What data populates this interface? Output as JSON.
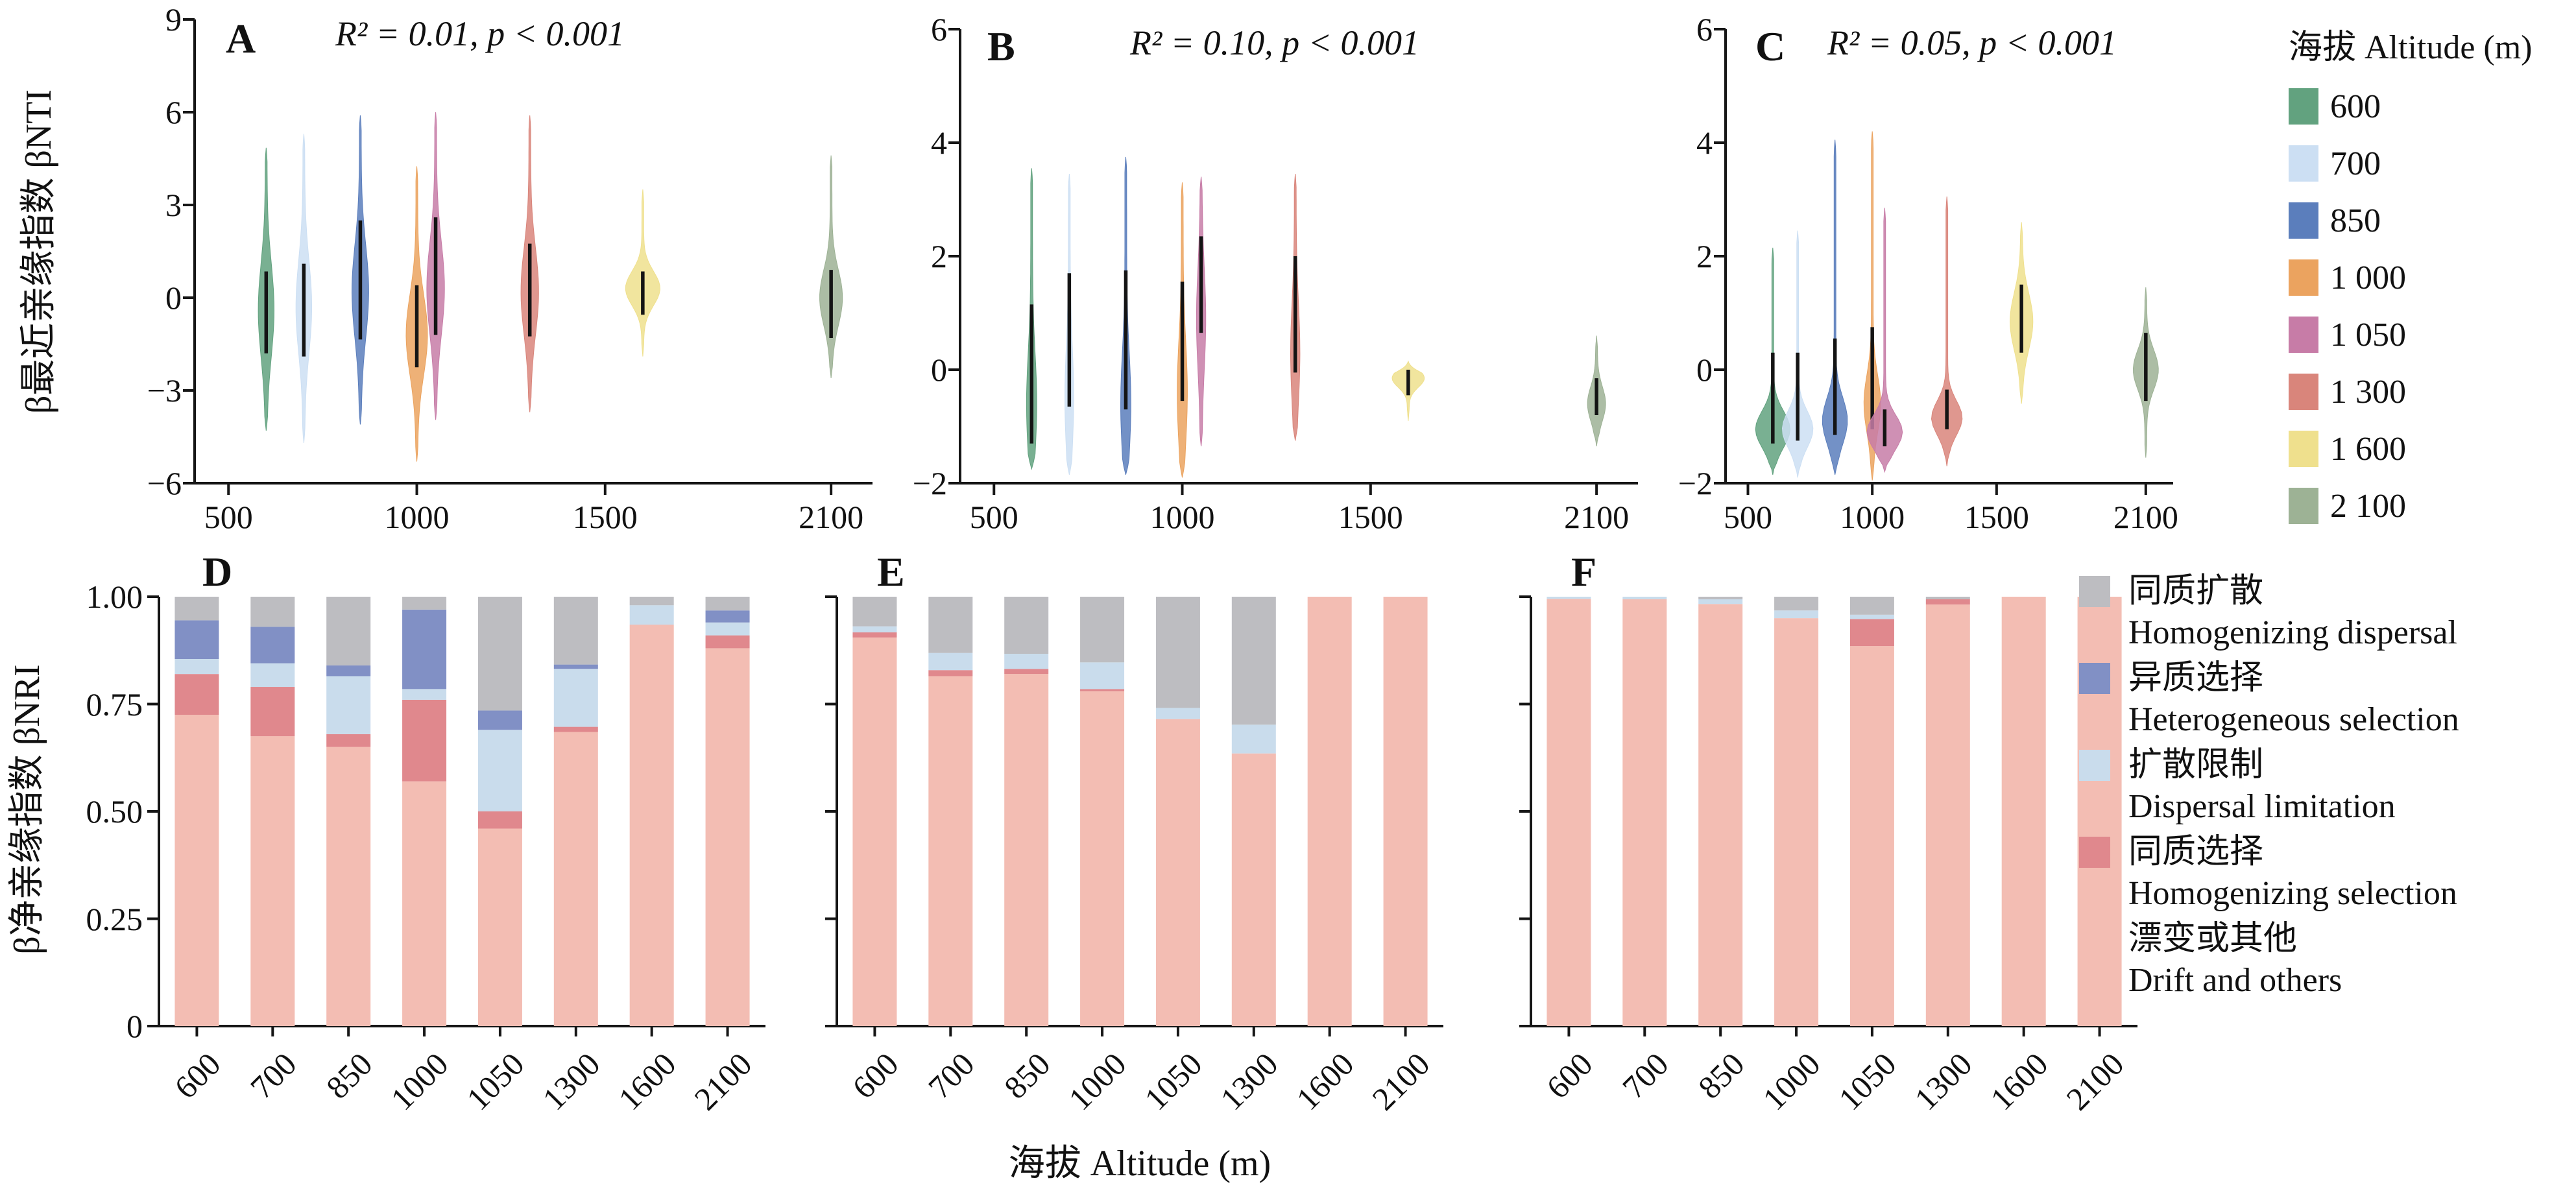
{
  "labels": {
    "y_top": "β最近亲缘指数 βNTI",
    "y_bottom": "β净亲缘指数 βNRI",
    "x_title": "海拔 Altitude (m)"
  },
  "legends": {
    "altitude": {
      "title": "海拔 Altitude (m)",
      "items": [
        {
          "label": "600",
          "color": "#62A27F"
        },
        {
          "label": "700",
          "color": "#CCDFF3"
        },
        {
          "label": "850",
          "color": "#5B7EBC"
        },
        {
          "label": "1 000",
          "color": "#EBA35F"
        },
        {
          "label": "1 050",
          "color": "#C77CA7"
        },
        {
          "label": "1 300",
          "color": "#D9857B"
        },
        {
          "label": "1 600",
          "color": "#EFE08D"
        },
        {
          "label": "2 100",
          "color": "#9DB295"
        }
      ]
    },
    "processes": {
      "items": [
        {
          "zh": "同质扩散",
          "en": "Homogenizing dispersal",
          "color": "#BDBDC1"
        },
        {
          "zh": "异质选择",
          "en": "Heterogeneous selection",
          "color": "#8190C5"
        },
        {
          "zh": "扩散限制",
          "en": "Dispersal limitation",
          "color": "#C9DCEC"
        },
        {
          "zh": "同质选择",
          "en": "Homogenizing selection",
          "color": "#E0888D"
        },
        {
          "zh": "漂变或其他",
          "en": "Drift and others",
          "color": "#F3BDB3"
        }
      ]
    }
  },
  "chart_data": [
    {
      "id": "A",
      "type": "violin",
      "annotation": "R² = 0.01, p < 0.001",
      "ylim": [
        -6,
        9
      ],
      "yticks": [
        {
          "v": 9,
          "label": "9"
        },
        {
          "v": 6,
          "label": "6"
        },
        {
          "v": 3,
          "label": "3"
        },
        {
          "v": 0,
          "label": "0"
        },
        {
          "v": -3,
          "label": "−3"
        },
        {
          "v": -6,
          "label": "−6"
        }
      ],
      "xticks": [
        {
          "v": 500,
          "label": "500"
        },
        {
          "v": 1000,
          "label": "1000"
        },
        {
          "v": 1500,
          "label": "1500"
        },
        {
          "v": 2100,
          "label": "2100"
        }
      ],
      "violins": [
        {
          "altitude": 600,
          "min": -4.3,
          "max": 4.85,
          "box": [
            -1.8,
            0.85
          ],
          "peak": -0.4,
          "fat": 0.3,
          "sigma": 1.5
        },
        {
          "altitude": 700,
          "min": -4.7,
          "max": 5.3,
          "box": [
            -1.9,
            1.1
          ],
          "peak": -0.3,
          "fat": 0.3,
          "sigma": 1.5
        },
        {
          "altitude": 850,
          "min": -4.1,
          "max": 5.9,
          "box": [
            -1.35,
            2.5
          ],
          "peak": 0.2,
          "fat": 0.32,
          "sigma": 1.5
        },
        {
          "altitude": 1000,
          "min": -5.3,
          "max": 4.25,
          "box": [
            -2.25,
            0.4
          ],
          "peak": -1.2,
          "fat": 0.42,
          "sigma": 1.3
        },
        {
          "altitude": 1050,
          "min": -3.95,
          "max": 6.0,
          "box": [
            -1.2,
            2.6
          ],
          "peak": 0.3,
          "fat": 0.34,
          "sigma": 1.5
        },
        {
          "altitude": 1300,
          "min": -3.7,
          "max": 5.9,
          "box": [
            -1.25,
            1.75
          ],
          "peak": 0.2,
          "fat": 0.34,
          "sigma": 1.4
        },
        {
          "altitude": 1600,
          "min": -1.9,
          "max": 3.5,
          "box": [
            -0.55,
            0.85
          ],
          "peak": 0.3,
          "fat": 0.7,
          "sigma": 0.55
        },
        {
          "altitude": 2100,
          "min": -2.6,
          "max": 4.6,
          "box": [
            -1.3,
            0.9
          ],
          "peak": 0.0,
          "fat": 0.45,
          "sigma": 0.9
        }
      ]
    },
    {
      "id": "B",
      "type": "violin",
      "annotation": "R² = 0.10, p < 0.001",
      "ylim": [
        -2,
        6
      ],
      "yticks": [
        {
          "v": 6,
          "label": "6"
        },
        {
          "v": 4,
          "label": "4"
        },
        {
          "v": 2,
          "label": "2"
        },
        {
          "v": 0,
          "label": "0"
        },
        {
          "v": -2,
          "label": "−2"
        }
      ],
      "xticks": [
        {
          "v": 500,
          "label": "500"
        },
        {
          "v": 1000,
          "label": "1000"
        },
        {
          "v": 1500,
          "label": "1500"
        },
        {
          "v": 2100,
          "label": "2100"
        }
      ],
      "violins": [
        {
          "altitude": 600,
          "min": -1.75,
          "max": 3.55,
          "box": [
            -1.3,
            1.15
          ],
          "peak": -0.6,
          "fat": 0.18,
          "sigma": 0.9
        },
        {
          "altitude": 700,
          "min": -1.85,
          "max": 3.45,
          "box": [
            -0.65,
            1.7
          ],
          "peak": -0.5,
          "fat": 0.15,
          "sigma": 0.9
        },
        {
          "altitude": 850,
          "min": -1.85,
          "max": 3.75,
          "box": [
            -0.7,
            1.75
          ],
          "peak": -0.6,
          "fat": 0.18,
          "sigma": 0.9
        },
        {
          "altitude": 1000,
          "min": -1.9,
          "max": 3.3,
          "box": [
            -0.55,
            1.55
          ],
          "peak": -0.4,
          "fat": 0.18,
          "sigma": 0.9
        },
        {
          "altitude": 1050,
          "min": -1.35,
          "max": 3.4,
          "box": [
            0.65,
            2.35
          ],
          "peak": 0.9,
          "fat": 0.16,
          "sigma": 0.9
        },
        {
          "altitude": 1300,
          "min": -1.25,
          "max": 3.45,
          "box": [
            -0.05,
            2.0
          ],
          "peak": 0.3,
          "fat": 0.16,
          "sigma": 0.9
        },
        {
          "altitude": 1600,
          "min": -0.9,
          "max": 0.15,
          "box": [
            -0.45,
            0.0
          ],
          "peak": -0.15,
          "fat": 0.65,
          "sigma": 0.16
        },
        {
          "altitude": 2100,
          "min": -1.35,
          "max": 0.6,
          "box": [
            -0.8,
            -0.15
          ],
          "peak": -0.6,
          "fat": 0.35,
          "sigma": 0.3
        }
      ]
    },
    {
      "id": "C",
      "type": "violin",
      "annotation": "R² = 0.05, p < 0.001",
      "ylim": [
        -2,
        6
      ],
      "yticks": [
        {
          "v": 6,
          "label": "6"
        },
        {
          "v": 4,
          "label": "4"
        },
        {
          "v": 2,
          "label": "2"
        },
        {
          "v": 0,
          "label": "0"
        },
        {
          "v": -2,
          "label": "−2"
        }
      ],
      "xticks": [
        {
          "v": 500,
          "label": "500"
        },
        {
          "v": 1000,
          "label": "1000"
        },
        {
          "v": 1500,
          "label": "1500"
        },
        {
          "v": 2100,
          "label": "2100"
        }
      ],
      "violins": [
        {
          "altitude": 600,
          "min": -1.85,
          "max": 2.15,
          "box": [
            -1.3,
            0.3
          ],
          "peak": -1.05,
          "fat": 0.7,
          "sigma": 0.32
        },
        {
          "altitude": 700,
          "min": -1.9,
          "max": 2.45,
          "box": [
            -1.25,
            0.3
          ],
          "peak": -1.05,
          "fat": 0.62,
          "sigma": 0.32
        },
        {
          "altitude": 850,
          "min": -1.85,
          "max": 4.05,
          "box": [
            -1.15,
            0.55
          ],
          "peak": -0.9,
          "fat": 0.5,
          "sigma": 0.4
        },
        {
          "altitude": 1000,
          "min": -1.95,
          "max": 4.2,
          "box": [
            -1.05,
            0.75
          ],
          "peak": -0.6,
          "fat": 0.32,
          "sigma": 0.5
        },
        {
          "altitude": 1050,
          "min": -1.8,
          "max": 2.85,
          "box": [
            -1.35,
            -0.7
          ],
          "peak": -1.1,
          "fat": 0.72,
          "sigma": 0.3
        },
        {
          "altitude": 1300,
          "min": -1.7,
          "max": 3.05,
          "box": [
            -1.05,
            -0.35
          ],
          "peak": -0.85,
          "fat": 0.62,
          "sigma": 0.3
        },
        {
          "altitude": 1600,
          "min": -0.6,
          "max": 2.6,
          "box": [
            0.3,
            1.5
          ],
          "peak": 0.85,
          "fat": 0.45,
          "sigma": 0.5
        },
        {
          "altitude": 2100,
          "min": -1.55,
          "max": 1.45,
          "box": [
            -0.55,
            0.65
          ],
          "peak": 0.0,
          "fat": 0.5,
          "sigma": 0.35
        }
      ]
    },
    {
      "id": "D",
      "type": "stacked-bar",
      "categories": [
        "600",
        "700",
        "850",
        "1000",
        "1050",
        "1300",
        "1600",
        "2100"
      ],
      "ylim": [
        0,
        1
      ],
      "yticks": [
        {
          "v": 1,
          "label": "1.00"
        },
        {
          "v": 0.75,
          "label": "0.75"
        },
        {
          "v": 0.5,
          "label": "0.50"
        },
        {
          "v": 0.25,
          "label": "0.25"
        },
        {
          "v": 0,
          "label": "0"
        }
      ],
      "show_ytick_labels": true,
      "series": [
        {
          "key": "drift",
          "color": "#F3BDB3",
          "values": [
            0.725,
            0.675,
            0.65,
            0.57,
            0.46,
            0.685,
            0.935,
            0.88
          ]
        },
        {
          "key": "homogenizing_selection",
          "color": "#E0888D",
          "values": [
            0.095,
            0.115,
            0.03,
            0.19,
            0.04,
            0.012,
            0.0,
            0.03
          ]
        },
        {
          "key": "dispersal_limitation",
          "color": "#C9DCEC",
          "values": [
            0.035,
            0.055,
            0.135,
            0.025,
            0.19,
            0.135,
            0.045,
            0.03
          ]
        },
        {
          "key": "heterogeneous_selection",
          "color": "#8190C5",
          "values": [
            0.09,
            0.085,
            0.025,
            0.185,
            0.045,
            0.01,
            0.0,
            0.028
          ]
        },
        {
          "key": "homogenizing_dispersal",
          "color": "#BDBDC1",
          "values": [
            0.055,
            0.07,
            0.16,
            0.03,
            0.265,
            0.158,
            0.02,
            0.032
          ]
        }
      ]
    },
    {
      "id": "E",
      "type": "stacked-bar",
      "categories": [
        "600",
        "700",
        "850",
        "1000",
        "1050",
        "1300",
        "1600",
        "2100"
      ],
      "ylim": [
        0,
        1
      ],
      "yticks": [
        {
          "v": 1,
          "label": "1.00"
        },
        {
          "v": 0.75,
          "label": "0.75"
        },
        {
          "v": 0.5,
          "label": "0.50"
        },
        {
          "v": 0.25,
          "label": "0.25"
        },
        {
          "v": 0,
          "label": "0"
        }
      ],
      "show_ytick_labels": false,
      "series": [
        {
          "key": "drift",
          "color": "#F3BDB3",
          "values": [
            0.905,
            0.815,
            0.82,
            0.78,
            0.715,
            0.635,
            1.0,
            1.0
          ]
        },
        {
          "key": "homogenizing_selection",
          "color": "#E0888D",
          "values": [
            0.012,
            0.014,
            0.012,
            0.005,
            0.0,
            0.0,
            0.0,
            0.0
          ]
        },
        {
          "key": "dispersal_limitation",
          "color": "#C9DCEC",
          "values": [
            0.014,
            0.04,
            0.035,
            0.062,
            0.026,
            0.067,
            0.0,
            0.0
          ]
        },
        {
          "key": "heterogeneous_selection",
          "color": "#8190C5",
          "values": [
            0.0,
            0.0,
            0.0,
            0.0,
            0.0,
            0.0,
            0.0,
            0.0
          ]
        },
        {
          "key": "homogenizing_dispersal",
          "color": "#BDBDC1",
          "values": [
            0.069,
            0.131,
            0.133,
            0.153,
            0.259,
            0.298,
            0.0,
            0.0
          ]
        }
      ]
    },
    {
      "id": "F",
      "type": "stacked-bar",
      "categories": [
        "600",
        "700",
        "850",
        "1000",
        "1050",
        "1300",
        "1600",
        "2100"
      ],
      "ylim": [
        0,
        1
      ],
      "yticks": [
        {
          "v": 1,
          "label": "1.00"
        },
        {
          "v": 0.75,
          "label": "0.75"
        },
        {
          "v": 0.5,
          "label": "0.50"
        },
        {
          "v": 0.25,
          "label": "0.25"
        },
        {
          "v": 0,
          "label": "0"
        }
      ],
      "show_ytick_labels": false,
      "series": [
        {
          "key": "drift",
          "color": "#F3BDB3",
          "values": [
            0.995,
            0.994,
            0.983,
            0.95,
            0.885,
            0.982,
            1.0,
            1.0
          ]
        },
        {
          "key": "homogenizing_selection",
          "color": "#E0888D",
          "values": [
            0.0,
            0.0,
            0.0,
            0.0,
            0.063,
            0.012,
            0.0,
            0.0
          ]
        },
        {
          "key": "dispersal_limitation",
          "color": "#C9DCEC",
          "values": [
            0.005,
            0.006,
            0.011,
            0.018,
            0.01,
            0.0,
            0.0,
            0.0
          ]
        },
        {
          "key": "heterogeneous_selection",
          "color": "#8190C5",
          "values": [
            0.0,
            0.0,
            0.0,
            0.0,
            0.0,
            0.0,
            0.0,
            0.0
          ]
        },
        {
          "key": "homogenizing_dispersal",
          "color": "#BDBDC1",
          "values": [
            0.0,
            0.0,
            0.006,
            0.032,
            0.042,
            0.006,
            0.0,
            0.0
          ]
        }
      ]
    }
  ]
}
